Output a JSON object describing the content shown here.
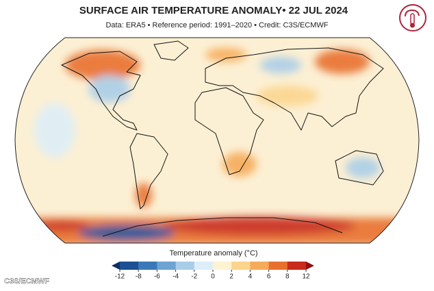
{
  "header": {
    "title": "SURFACE AIR TEMPERATURE ANOMALY• 22 JUL 2024",
    "subtitle": "Data: ERA5 • Reference period: 1991–2020 • Credit: C3S/ECMWF"
  },
  "legend": {
    "label": "Temperature anomaly (°C)",
    "ticks": [
      -12,
      -8,
      -6,
      -4,
      -2,
      0,
      2,
      4,
      6,
      8,
      12
    ],
    "colors": [
      "#1d4f93",
      "#3a78b9",
      "#6ea3d2",
      "#a9cde8",
      "#ddeef8",
      "#fdf3d2",
      "#fbd58e",
      "#f6ab5a",
      "#e8702f",
      "#c92a1c"
    ],
    "under_color": "#0d2f6b",
    "over_color": "#8e1010"
  },
  "credit": "C3S/ECMWF"
}
